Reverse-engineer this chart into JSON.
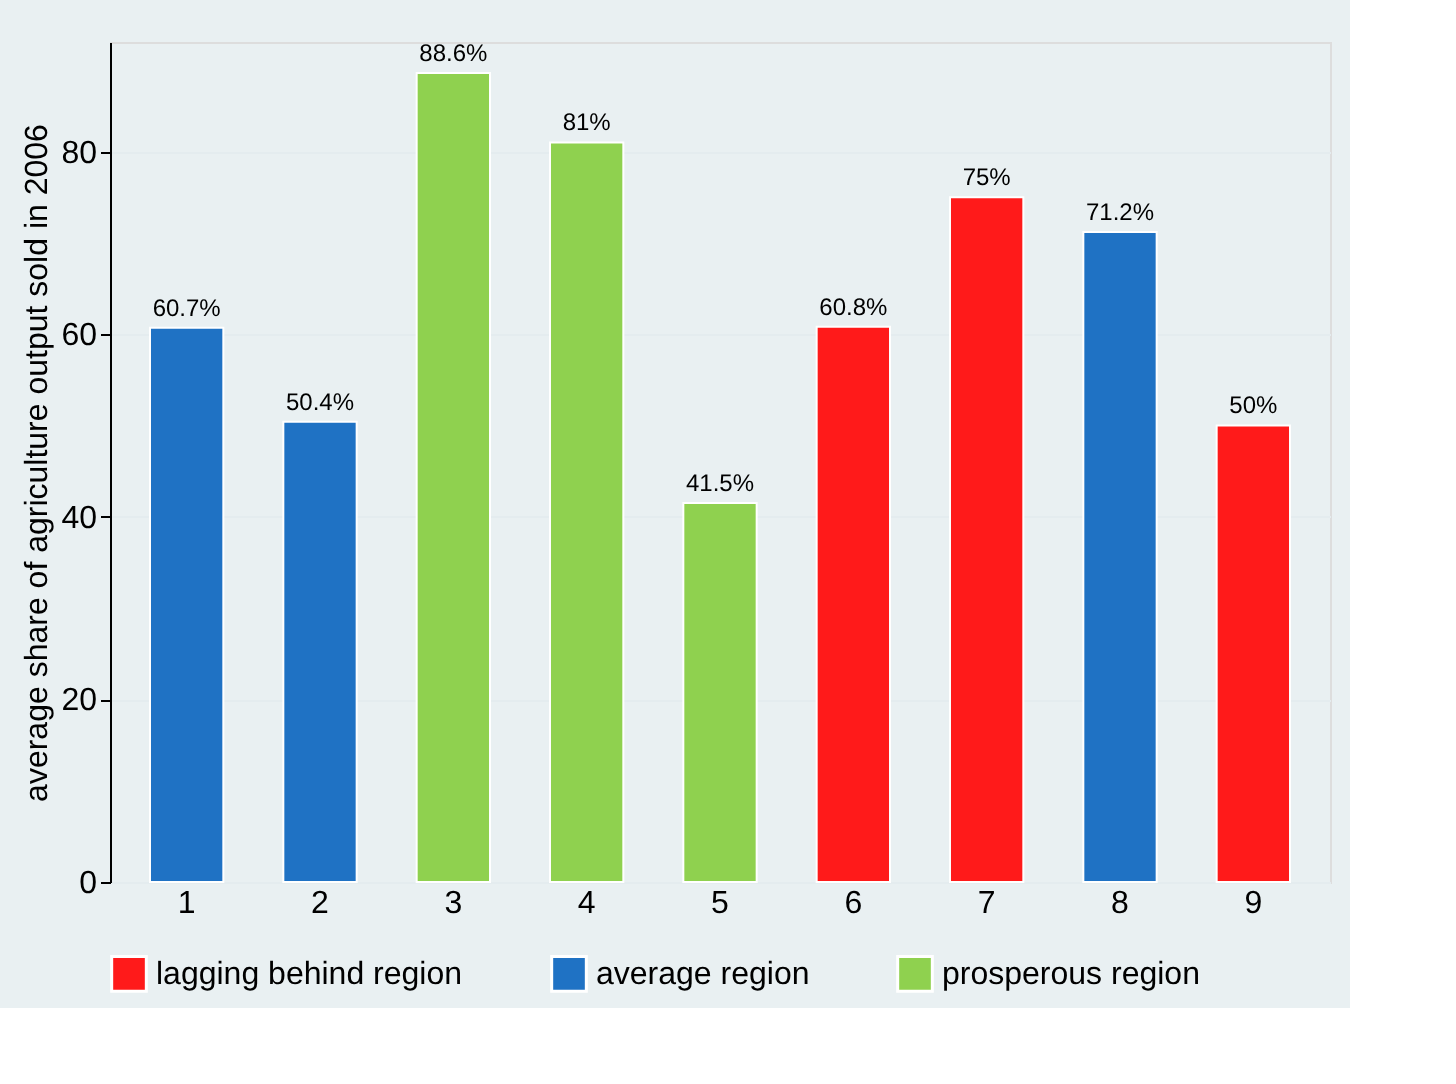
{
  "chart_data": {
    "type": "bar",
    "ylabel": "average share of  agriculture output sold in 2006",
    "categories": [
      "1",
      "2",
      "3",
      "4",
      "5",
      "6",
      "7",
      "8",
      "9"
    ],
    "series": [
      {
        "name": "lagging behind region",
        "color": "#ff1a1a",
        "values": [
          null,
          null,
          null,
          null,
          null,
          60.8,
          75,
          null,
          50
        ]
      },
      {
        "name": "average region",
        "color": "#1f72c4",
        "values": [
          60.7,
          50.4,
          null,
          null,
          null,
          null,
          null,
          71.2,
          null
        ]
      },
      {
        "name": "prosperous   region",
        "color": "#8fd14f",
        "values": [
          null,
          null,
          88.6,
          81,
          41.5,
          null,
          null,
          null,
          null
        ]
      }
    ],
    "value_labels": [
      "60.7%",
      "50.4%",
      "88.6%",
      "81%",
      "41.5%",
      "60.8%",
      "75%",
      "71.2%",
      "50%"
    ],
    "ylim": [
      0,
      92
    ],
    "yticks": [
      0,
      20,
      40,
      60,
      80
    ],
    "grid": "y",
    "legend": "bottom"
  }
}
